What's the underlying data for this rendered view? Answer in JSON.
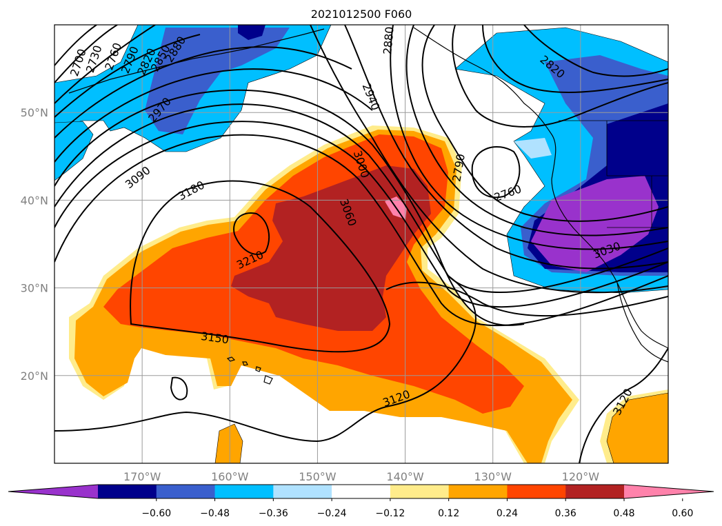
{
  "title": "2021012500 F060",
  "map": {
    "lon_range": [
      -180,
      -110
    ],
    "lat_range": [
      10,
      60
    ],
    "lon_ticks": [
      {
        "lon": -170,
        "label": "170°W"
      },
      {
        "lon": -160,
        "label": "160°W"
      },
      {
        "lon": -150,
        "label": "150°W"
      },
      {
        "lon": -140,
        "label": "140°W"
      },
      {
        "lon": -130,
        "label": "130°W"
      },
      {
        "lon": -120,
        "label": "120°W"
      }
    ],
    "lat_ticks": [
      {
        "lat": 20,
        "label": "20°N"
      },
      {
        "lat": 30,
        "label": "30°N"
      },
      {
        "lat": 40,
        "label": "40°N"
      },
      {
        "lat": 50,
        "label": "50°N"
      }
    ],
    "grid": true
  },
  "contour_labels": [
    {
      "text": "2700",
      "lon": -177.3,
      "lat": 55.7,
      "rot": -72
    },
    {
      "text": "2730",
      "lon": -175.5,
      "lat": 56.1,
      "rot": -72
    },
    {
      "text": "2760",
      "lon": -173.3,
      "lat": 56.4,
      "rot": -70
    },
    {
      "text": "2790",
      "lon": -171.4,
      "lat": 56.0,
      "rot": -68
    },
    {
      "text": "2820",
      "lon": -169.5,
      "lat": 55.8,
      "rot": -65
    },
    {
      "text": "2850",
      "lon": -167.9,
      "lat": 56.2,
      "rot": -62
    },
    {
      "text": "2880",
      "lon": -166.2,
      "lat": 57.2,
      "rot": -58
    },
    {
      "text": "2970",
      "lon": -168.0,
      "lat": 50.3,
      "rot": -50
    },
    {
      "text": "3090",
      "lon": -170.5,
      "lat": 42.6,
      "rot": -38
    },
    {
      "text": "3180",
      "lon": -164.4,
      "lat": 41.1,
      "rot": -28
    },
    {
      "text": "3210",
      "lon": -157.7,
      "lat": 33.2,
      "rot": -25
    },
    {
      "text": "3150",
      "lon": -161.7,
      "lat": 24.3,
      "rot": 8
    },
    {
      "text": "3000",
      "lon": -145.0,
      "lat": 44.1,
      "rot": 72
    },
    {
      "text": "3060",
      "lon": -146.5,
      "lat": 38.6,
      "rot": 70
    },
    {
      "text": "2940",
      "lon": -143.9,
      "lat": 51.8,
      "rot": 68
    },
    {
      "text": "2880",
      "lon": -141.9,
      "lat": 58.2,
      "rot": -85
    },
    {
      "text": "2790",
      "lon": -133.9,
      "lat": 43.7,
      "rot": -80
    },
    {
      "text": "2760",
      "lon": -128.3,
      "lat": 40.8,
      "rot": -20
    },
    {
      "text": "2820",
      "lon": -123.2,
      "lat": 55.2,
      "rot": 40
    },
    {
      "text": "3030",
      "lon": -117.0,
      "lat": 34.3,
      "rot": -20
    },
    {
      "text": "3120",
      "lon": -141.0,
      "lat": 17.4,
      "rot": -20
    },
    {
      "text": "3120",
      "lon": -115.2,
      "lat": 17.0,
      "rot": -62
    }
  ],
  "colorbar": {
    "levels": [
      "−0.60",
      "−0.48",
      "−0.36",
      "−0.24",
      "−0.12",
      "0.12",
      "0.24",
      "0.36",
      "0.48",
      "0.60"
    ],
    "colors": [
      "#9932cc",
      "#00008b",
      "#3a5fcd",
      "#00bfff",
      "#b0e2ff",
      "#ffffff",
      "#ffec8b",
      "#ffa500",
      "#ff4500",
      "#b22222",
      "#ff82ab"
    ],
    "extend": "both"
  }
}
